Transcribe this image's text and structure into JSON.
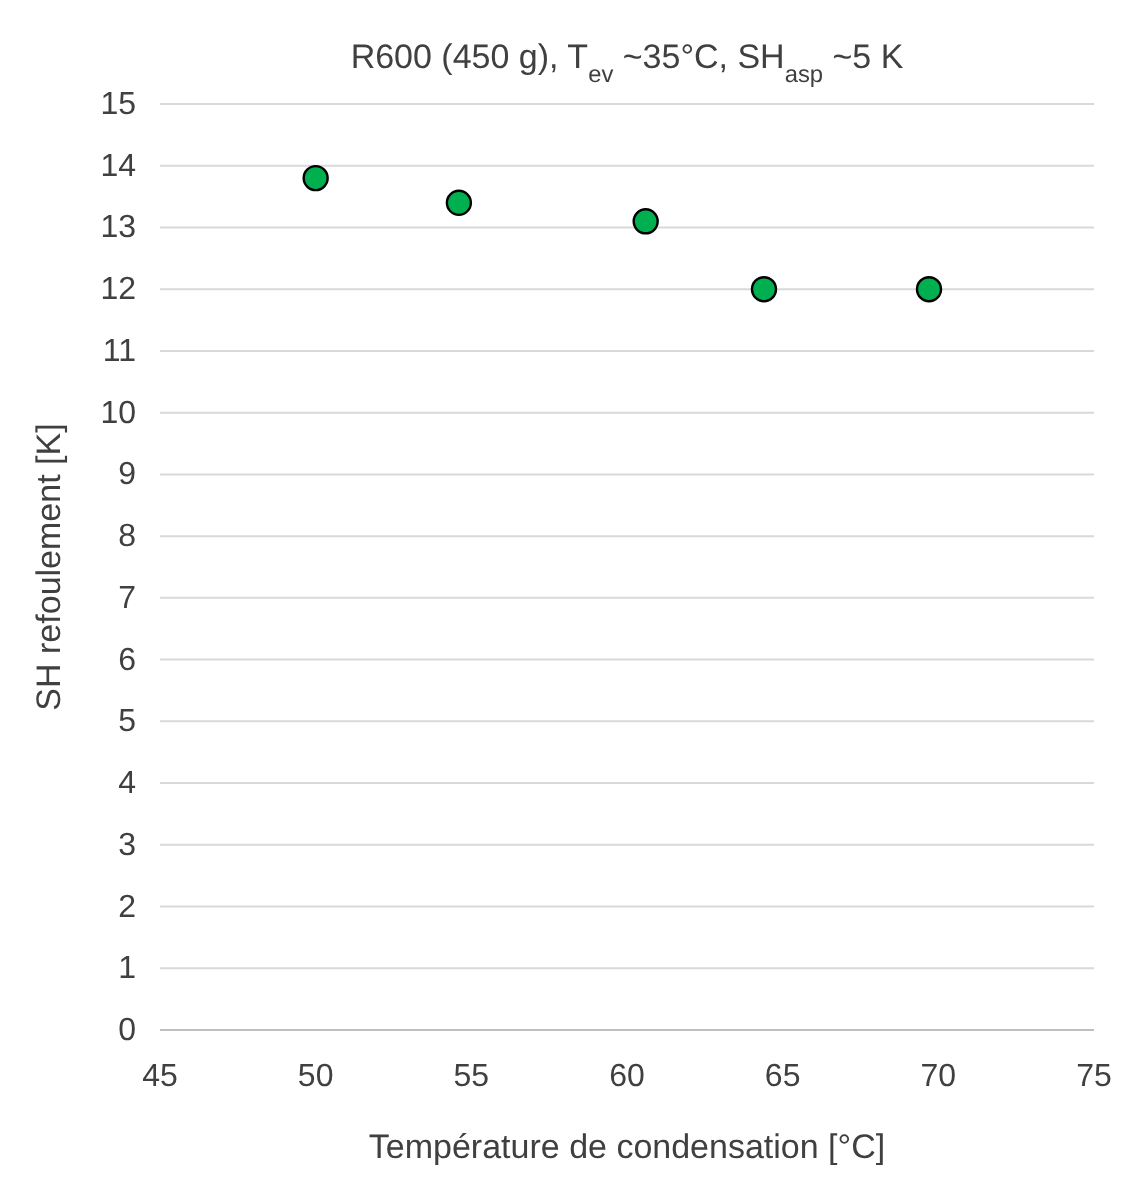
{
  "chart_data": {
    "type": "scatter",
    "title": "R600 (450 g), T$_{ev}$ ~35°C, SH$_{asp}$ ~5 K",
    "xlabel": "Température de condensation [°C]",
    "ylabel": "SH refoulement [K]",
    "x": [
      50,
      54.6,
      60.6,
      64.4,
      69.7
    ],
    "series": [
      {
        "color": "#00b050",
        "values": [
          13.8,
          13.4,
          13.1,
          12.0,
          12.0
        ]
      }
    ],
    "xlim": [
      45,
      75
    ],
    "xticks": [
      45,
      50,
      55,
      60,
      65,
      70,
      75
    ],
    "ylim": [
      0,
      15
    ],
    "yticks": [
      0,
      1,
      2,
      3,
      4,
      5,
      6,
      7,
      8,
      9,
      10,
      11,
      12,
      13,
      14,
      15
    ],
    "grid": "y",
    "marker": "circle"
  }
}
